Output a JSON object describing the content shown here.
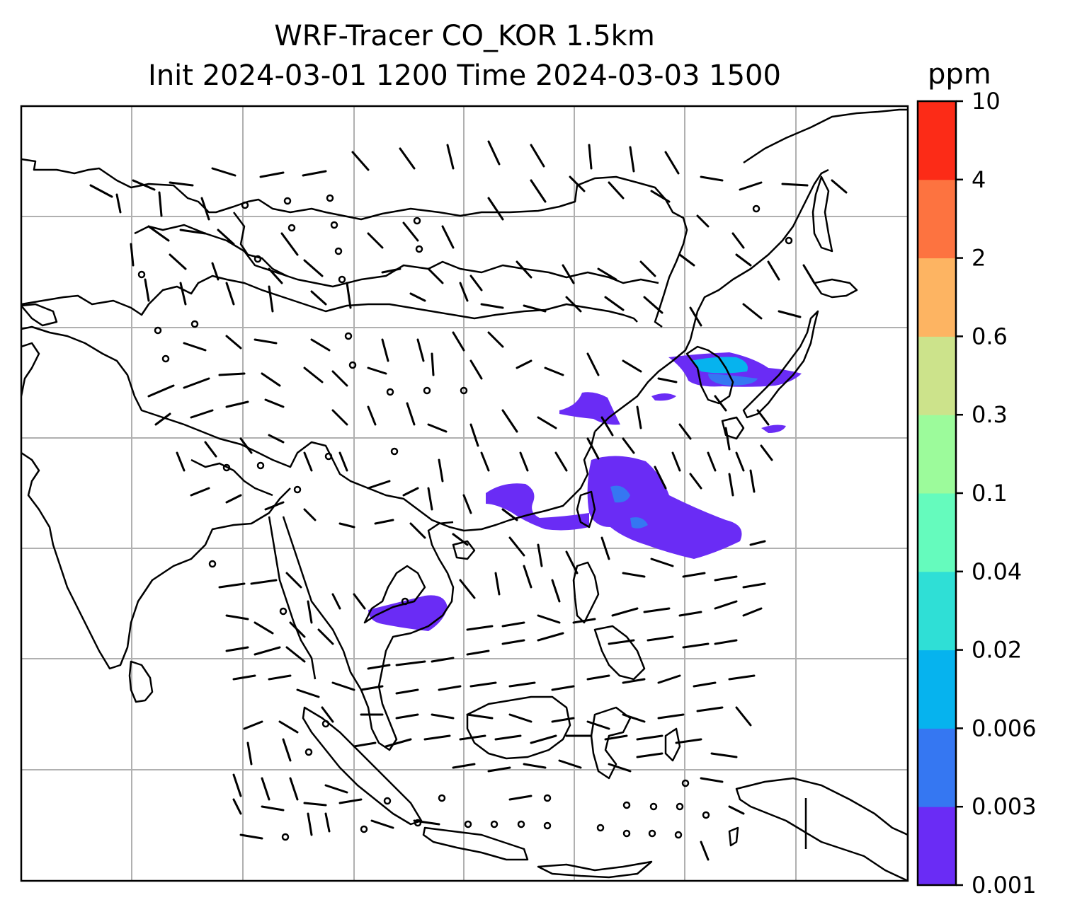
{
  "title": {
    "line1": "WRF-Tracer CO_KOR 1.5km",
    "line2": "Init 2024-03-01 1200 Time 2024-03-03 1500"
  },
  "colorbar": {
    "unit": "ppm",
    "levels": [
      "0.001",
      "0.003",
      "0.006",
      "0.02",
      "0.04",
      "0.1",
      "0.3",
      "0.6",
      "2",
      "4",
      "10"
    ],
    "colors": [
      "#6a2cf5",
      "#3577f2",
      "#06b3ee",
      "#2fdfd6",
      "#65fbbd",
      "#9cfb9b",
      "#cce38b",
      "#fdb462",
      "#fd7340",
      "#fc2b17"
    ]
  },
  "map": {
    "gridlines": true,
    "coastline_color": "#000000",
    "grid_color": "#b0b0b0"
  }
}
